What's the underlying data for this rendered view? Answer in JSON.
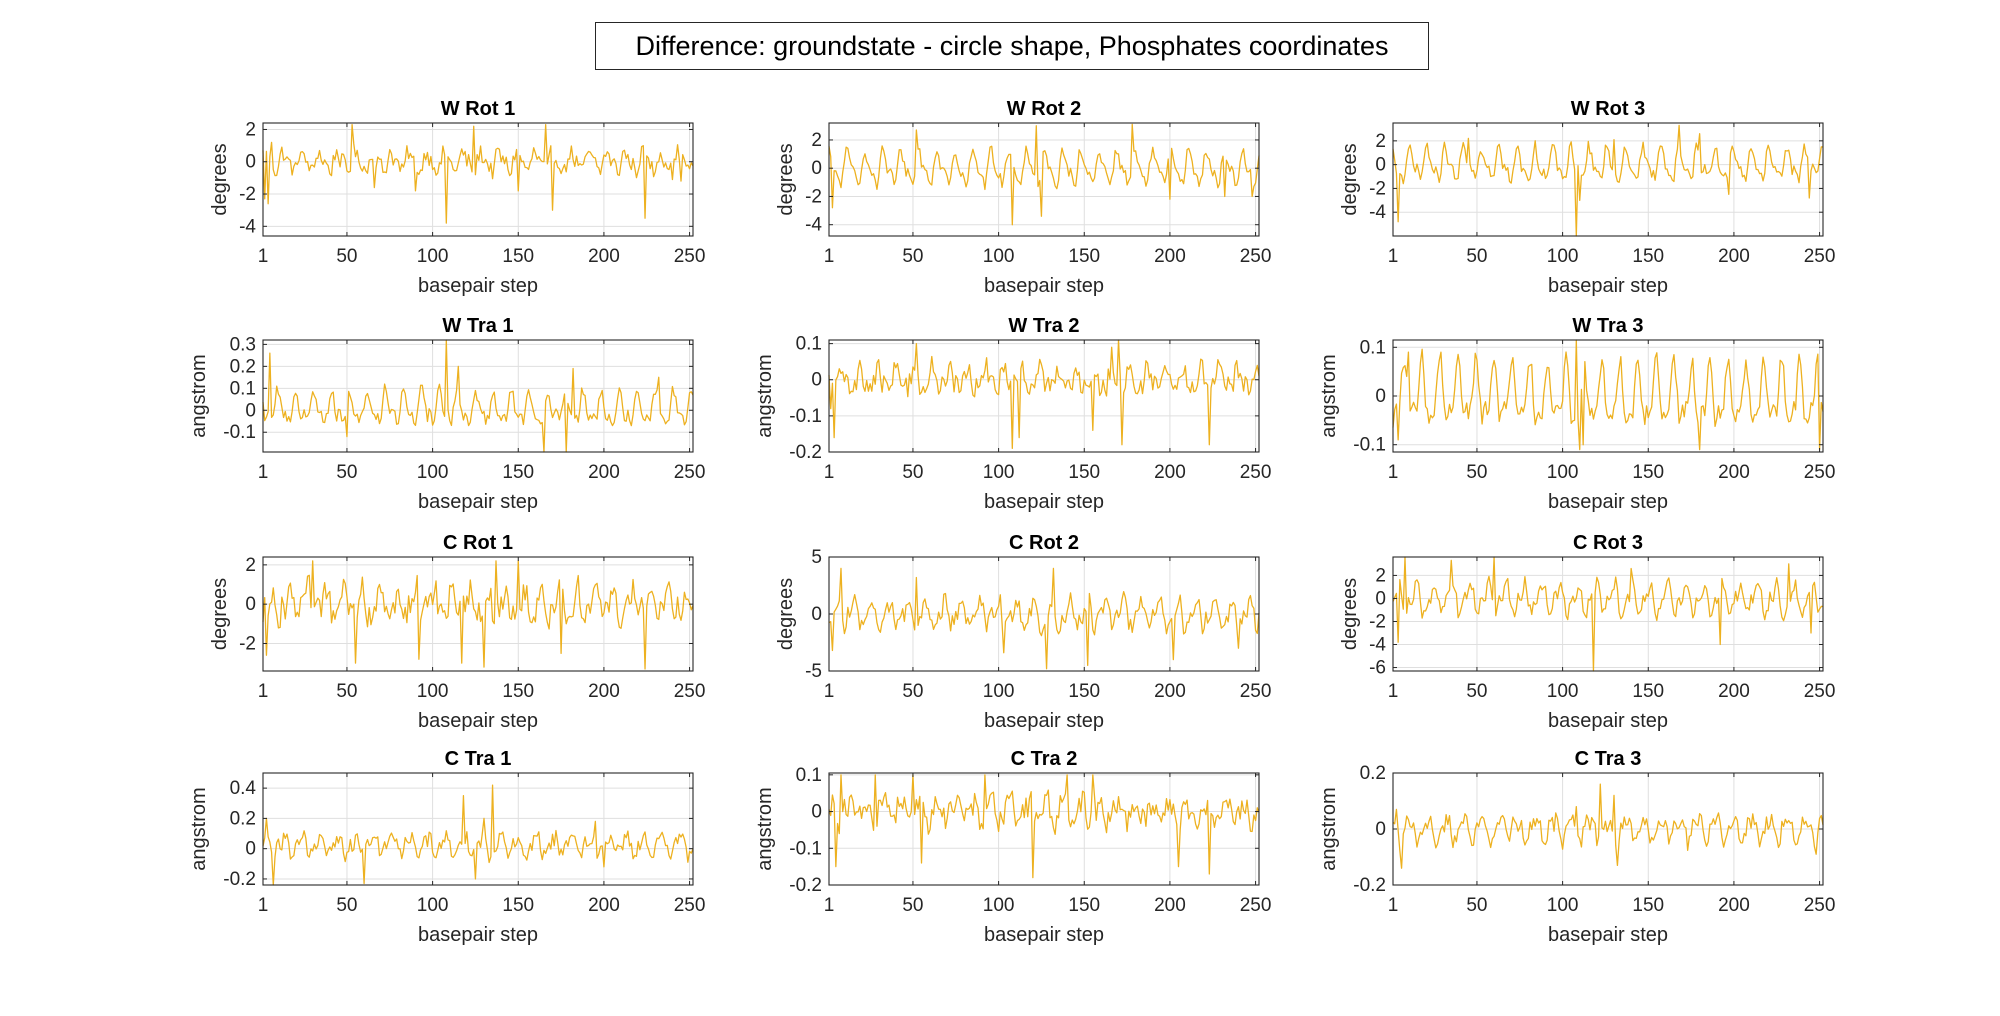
{
  "figure": {
    "title": "Difference: groundstate - circle shape, Phosphates coordinates",
    "line_color": "#EDB120",
    "grid_color": "#DFDFDF",
    "axis_color": "#262626"
  },
  "chart_data": [
    {
      "type": "line",
      "title": "W Rot 1",
      "xlabel": "basepair step",
      "ylabel": "degrees",
      "xlim": [
        1,
        252
      ],
      "ylim": [
        -4.6,
        2.4
      ],
      "xticks": [
        1,
        50,
        100,
        150,
        200,
        250
      ],
      "yticks": [
        -4,
        -2,
        0,
        2
      ],
      "grid": true,
      "n": 252,
      "period": 10.5,
      "amp": 0.5,
      "base": 0.0,
      "noise": 0.5,
      "spikes": [
        [
          2,
          -2.3
        ],
        [
          4,
          -2.6
        ],
        [
          6,
          1.2
        ],
        [
          53,
          2.3
        ],
        [
          66,
          -1.6
        ],
        [
          90,
          -1.8
        ],
        [
          108,
          -3.8
        ],
        [
          124,
          2.2
        ],
        [
          150,
          -1.8
        ],
        [
          166,
          2.3
        ],
        [
          170,
          -3.0
        ],
        [
          224,
          -3.5
        ],
        [
          245,
          -1.2
        ]
      ]
    },
    {
      "type": "line",
      "title": "W Rot 2",
      "xlabel": "basepair step",
      "ylabel": "degrees",
      "xlim": [
        1,
        252
      ],
      "ylim": [
        -4.8,
        3.2
      ],
      "xticks": [
        1,
        50,
        100,
        150,
        200,
        250
      ],
      "yticks": [
        -4,
        -2,
        0,
        2
      ],
      "grid": true,
      "n": 252,
      "period": 10.5,
      "amp": 1.0,
      "base": 0.0,
      "noise": 0.4,
      "spikes": [
        [
          3,
          -2.8
        ],
        [
          52,
          2.7
        ],
        [
          108,
          -4.0
        ],
        [
          122,
          3.0
        ],
        [
          125,
          -3.4
        ],
        [
          178,
          3.1
        ],
        [
          200,
          -2.2
        ],
        [
          232,
          -2.0
        ],
        [
          248,
          -2.0
        ]
      ]
    },
    {
      "type": "line",
      "title": "W Rot 3",
      "xlabel": "basepair step",
      "ylabel": "degrees",
      "xlim": [
        1,
        252
      ],
      "ylim": [
        -6.0,
        3.5
      ],
      "xticks": [
        1,
        50,
        100,
        150,
        200,
        250
      ],
      "yticks": [
        -4,
        -2,
        0,
        2
      ],
      "grid": true,
      "n": 252,
      "period": 10.5,
      "amp": 1.1,
      "base": 0.0,
      "noise": 0.5,
      "spikes": [
        [
          4,
          -4.8
        ],
        [
          45,
          2.2
        ],
        [
          108,
          -6.0
        ],
        [
          110,
          -3.0
        ],
        [
          130,
          2.1
        ],
        [
          168,
          3.3
        ],
        [
          180,
          2.6
        ],
        [
          197,
          -2.5
        ],
        [
          244,
          -2.8
        ]
      ]
    },
    {
      "type": "line",
      "title": "W Tra 1",
      "xlabel": "basepair step",
      "ylabel": "angstrom",
      "xlim": [
        1,
        252
      ],
      "ylim": [
        -0.19,
        0.32
      ],
      "xticks": [
        1,
        50,
        100,
        150,
        200,
        250
      ],
      "yticks": [
        -0.1,
        0,
        0.1,
        0.2,
        0.3
      ],
      "grid": true,
      "n": 252,
      "period": 10.5,
      "amp": 0.06,
      "base": 0.01,
      "noise": 0.03,
      "spikes": [
        [
          5,
          0.26
        ],
        [
          50,
          -0.12
        ],
        [
          108,
          0.32
        ],
        [
          115,
          0.2
        ],
        [
          165,
          -0.19
        ],
        [
          178,
          -0.2
        ],
        [
          182,
          0.19
        ],
        [
          232,
          0.15
        ]
      ]
    },
    {
      "type": "line",
      "title": "W Tra 2",
      "xlabel": "basepair step",
      "ylabel": "angstrom",
      "xlim": [
        1,
        252
      ],
      "ylim": [
        -0.2,
        0.11
      ],
      "xticks": [
        1,
        50,
        100,
        150,
        200,
        250
      ],
      "yticks": [
        -0.2,
        -0.1,
        0,
        0.1
      ],
      "grid": true,
      "n": 252,
      "period": 10.5,
      "amp": 0.025,
      "base": 0.0,
      "noise": 0.03,
      "spikes": [
        [
          2,
          -0.08
        ],
        [
          4,
          -0.16
        ],
        [
          52,
          0.1
        ],
        [
          108,
          -0.19
        ],
        [
          112,
          -0.16
        ],
        [
          155,
          -0.14
        ],
        [
          166,
          0.09
        ],
        [
          170,
          0.11
        ],
        [
          172,
          -0.18
        ],
        [
          223,
          -0.18
        ]
      ]
    },
    {
      "type": "line",
      "title": "W Tra 3",
      "xlabel": "basepair step",
      "ylabel": "angstrom",
      "xlim": [
        1,
        252
      ],
      "ylim": [
        -0.115,
        0.115
      ],
      "xticks": [
        1,
        50,
        100,
        150,
        200,
        250
      ],
      "yticks": [
        -0.1,
        0,
        0.1
      ],
      "grid": true,
      "n": 252,
      "period": 10.5,
      "amp": 0.055,
      "base": 0.0,
      "noise": 0.02,
      "spikes": [
        [
          4,
          -0.09
        ],
        [
          10,
          0.09
        ],
        [
          108,
          0.12
        ],
        [
          110,
          -0.11
        ],
        [
          112,
          -0.1
        ],
        [
          180,
          -0.11
        ],
        [
          250,
          -0.11
        ]
      ]
    },
    {
      "type": "line",
      "title": "C Rot 1",
      "xlabel": "basepair step",
      "ylabel": "degrees",
      "xlim": [
        1,
        252
      ],
      "ylim": [
        -3.4,
        2.4
      ],
      "xticks": [
        1,
        50,
        100,
        150,
        200,
        250
      ],
      "yticks": [
        -2,
        0,
        2
      ],
      "grid": true,
      "n": 252,
      "period": 10.5,
      "amp": 0.6,
      "base": 0.0,
      "noise": 0.7,
      "spikes": [
        [
          3,
          -2.6
        ],
        [
          30,
          2.2
        ],
        [
          55,
          -3.0
        ],
        [
          92,
          -2.8
        ],
        [
          117,
          -3.0
        ],
        [
          130,
          -3.2
        ],
        [
          137,
          2.2
        ],
        [
          150,
          2.2
        ],
        [
          175,
          -2.5
        ],
        [
          224,
          -3.3
        ]
      ]
    },
    {
      "type": "line",
      "title": "C Rot 2",
      "xlabel": "basepair step",
      "ylabel": "degrees",
      "xlim": [
        1,
        252
      ],
      "ylim": [
        -5,
        5
      ],
      "xticks": [
        1,
        50,
        100,
        150,
        200,
        250
      ],
      "yticks": [
        -5,
        0,
        5
      ],
      "grid": true,
      "n": 252,
      "period": 10.5,
      "amp": 1.0,
      "base": 0.0,
      "noise": 0.8,
      "spikes": [
        [
          3,
          -3.2
        ],
        [
          8,
          4.0
        ],
        [
          52,
          3.2
        ],
        [
          103,
          -3.4
        ],
        [
          128,
          -4.8
        ],
        [
          132,
          4.0
        ],
        [
          152,
          -4.5
        ],
        [
          202,
          -4.0
        ],
        [
          240,
          -3.0
        ]
      ]
    },
    {
      "type": "line",
      "title": "C Rot 3",
      "xlabel": "basepair step",
      "ylabel": "degrees",
      "xlim": [
        1,
        252
      ],
      "ylim": [
        -6.3,
        3.6
      ],
      "xticks": [
        1,
        50,
        100,
        150,
        200,
        250
      ],
      "yticks": [
        -6,
        -4,
        -2,
        0,
        2
      ],
      "grid": true,
      "n": 252,
      "period": 10.5,
      "amp": 1.1,
      "base": 0.0,
      "noise": 0.6,
      "spikes": [
        [
          4,
          -3.8
        ],
        [
          8,
          3.6
        ],
        [
          35,
          3.3
        ],
        [
          60,
          3.6
        ],
        [
          118,
          -6.3
        ],
        [
          140,
          2.6
        ],
        [
          192,
          -4.0
        ],
        [
          232,
          3.0
        ],
        [
          245,
          -3.0
        ]
      ]
    },
    {
      "type": "line",
      "title": "C Tra 1",
      "xlabel": "basepair step",
      "ylabel": "angstrom",
      "xlim": [
        1,
        252
      ],
      "ylim": [
        -0.24,
        0.5
      ],
      "xticks": [
        1,
        50,
        100,
        150,
        200,
        250
      ],
      "yticks": [
        -0.2,
        0,
        0.2,
        0.4
      ],
      "grid": true,
      "n": 252,
      "period": 10.5,
      "amp": 0.05,
      "base": 0.02,
      "noise": 0.05,
      "spikes": [
        [
          3,
          0.2
        ],
        [
          7,
          -0.24
        ],
        [
          60,
          -0.23
        ],
        [
          118,
          0.35
        ],
        [
          125,
          -0.2
        ],
        [
          130,
          0.2
        ],
        [
          135,
          0.42
        ],
        [
          195,
          0.18
        ],
        [
          200,
          -0.12
        ]
      ]
    },
    {
      "type": "line",
      "title": "C Tra 2",
      "xlabel": "basepair step",
      "ylabel": "angstrom",
      "xlim": [
        1,
        252
      ],
      "ylim": [
        -0.2,
        0.105
      ],
      "xticks": [
        1,
        50,
        100,
        150,
        200,
        250
      ],
      "yticks": [
        -0.2,
        -0.1,
        0,
        0.1
      ],
      "grid": true,
      "n": 252,
      "period": 10.5,
      "amp": 0.025,
      "base": 0.0,
      "noise": 0.035,
      "spikes": [
        [
          5,
          -0.15
        ],
        [
          8,
          0.1
        ],
        [
          28,
          0.1
        ],
        [
          50,
          0.1
        ],
        [
          55,
          -0.14
        ],
        [
          92,
          0.1
        ],
        [
          120,
          -0.18
        ],
        [
          140,
          0.1
        ],
        [
          155,
          0.1
        ],
        [
          205,
          -0.15
        ],
        [
          223,
          -0.17
        ]
      ]
    },
    {
      "type": "line",
      "title": "C Tra 3",
      "xlabel": "basepair step",
      "ylabel": "angstrom",
      "xlim": [
        1,
        252
      ],
      "ylim": [
        -0.2,
        0.2
      ],
      "xticks": [
        1,
        50,
        100,
        150,
        200,
        250
      ],
      "yticks": [
        -0.2,
        0,
        0.2
      ],
      "grid": true,
      "n": 252,
      "period": 10.5,
      "amp": 0.035,
      "base": 0.0,
      "noise": 0.03,
      "spikes": [
        [
          3,
          0.07
        ],
        [
          6,
          -0.14
        ],
        [
          108,
          0.08
        ],
        [
          122,
          0.16
        ],
        [
          130,
          0.12
        ],
        [
          132,
          -0.13
        ],
        [
          248,
          -0.09
        ]
      ]
    }
  ]
}
